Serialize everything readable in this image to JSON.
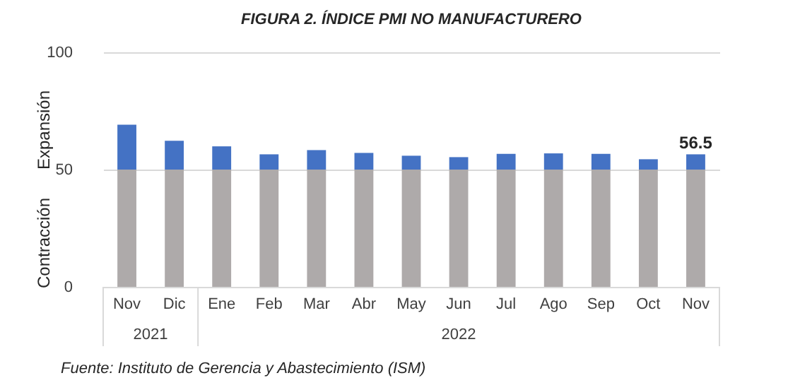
{
  "chart_data": {
    "type": "bar",
    "stacked": true,
    "title": "FIGURA 2. ÍNDICE PMI NO MANUFACTURERO",
    "categories": [
      "Nov",
      "Dic",
      "Ene",
      "Feb",
      "Mar",
      "Abr",
      "May",
      "Jun",
      "Jul",
      "Ago",
      "Sep",
      "Oct",
      "Nov"
    ],
    "series": [
      {
        "color": "#aeaaaa",
        "values": [
          50,
          50,
          50,
          50,
          50,
          50,
          50,
          50,
          50,
          50,
          50,
          50,
          50
        ]
      },
      {
        "color": "#4472c4",
        "values": [
          19.1,
          12.3,
          9.9,
          6.5,
          8.3,
          7.1,
          5.9,
          5.3,
          6.7,
          6.9,
          6.7,
          4.4,
          6.5
        ]
      }
    ],
    "totals": [
      null,
      null,
      null,
      null,
      null,
      null,
      null,
      null,
      null,
      null,
      null,
      null,
      "56.5"
    ],
    "ylim": [
      0,
      100
    ],
    "yticks": [
      0,
      50,
      100
    ],
    "grid": "y",
    "annotations": [
      "2021",
      "2022",
      "Expansión",
      "Contracción",
      "Fuente: Instituto de Gerencia y Abastecimiento (ISM)"
    ]
  }
}
